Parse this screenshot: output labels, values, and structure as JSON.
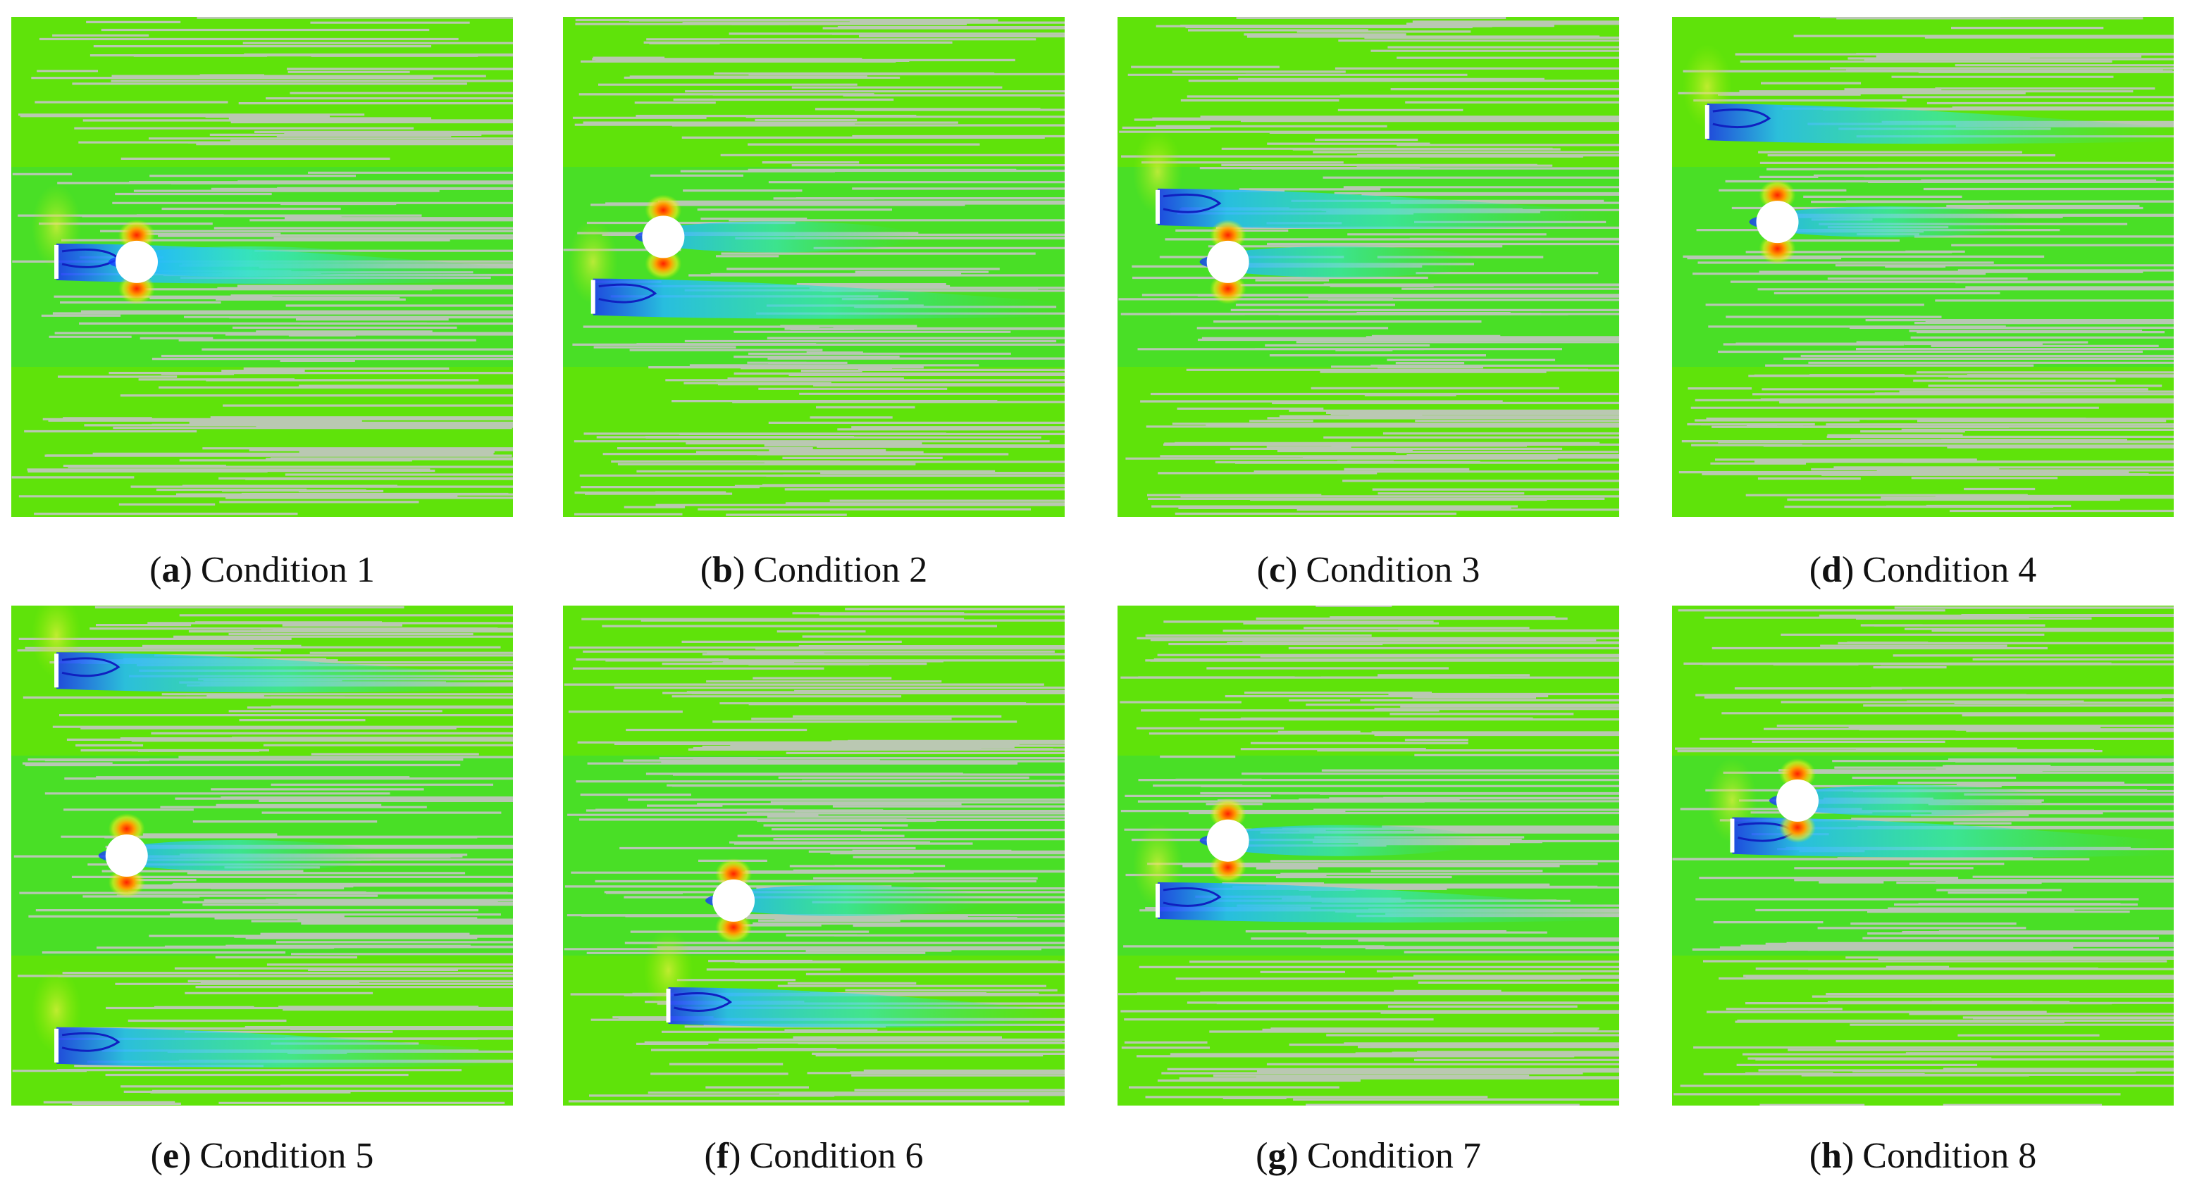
{
  "panels": [
    {
      "letter": "a",
      "caption": "Condition 1"
    },
    {
      "letter": "b",
      "caption": "Condition 2"
    },
    {
      "letter": "c",
      "caption": "Condition 3"
    },
    {
      "letter": "d",
      "caption": "Condition 4"
    },
    {
      "letter": "e",
      "caption": "Condition 5"
    },
    {
      "letter": "f",
      "caption": "Condition 6"
    },
    {
      "letter": "g",
      "caption": "Condition 7"
    },
    {
      "letter": "h",
      "caption": "Condition 8"
    }
  ]
}
